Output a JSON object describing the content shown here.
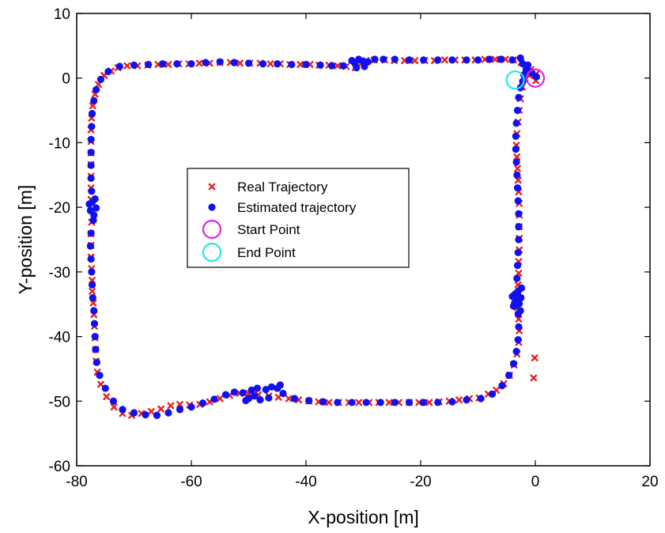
{
  "chart_data": {
    "type": "scatter",
    "xlabel": "X-position [m]",
    "ylabel": "Y-position [m]",
    "xlim": [
      -80,
      20
    ],
    "ylim": [
      -60,
      10
    ],
    "xticks": [
      -80,
      -60,
      -40,
      -20,
      0,
      20
    ],
    "yticks": [
      -60,
      -50,
      -40,
      -30,
      -20,
      -10,
      0,
      10
    ],
    "grid": false,
    "legend_position": "center-left",
    "colors": {
      "real": "#e8211e",
      "estimated": "#1010f0",
      "start": "#e020e0",
      "end": "#20e8e8"
    },
    "series": [
      {
        "name": "Real Trajectory",
        "marker": "x",
        "points": [
          [
            0.1,
            0.6
          ],
          [
            -0.8,
            1.3
          ],
          [
            -1.6,
            1.9
          ],
          [
            -2.5,
            2.4
          ],
          [
            -3.8,
            2.8
          ],
          [
            -5.2,
            2.9
          ],
          [
            -7.0,
            2.9
          ],
          [
            -8.8,
            2.9
          ],
          [
            -10.5,
            2.8
          ],
          [
            -12.3,
            2.8
          ],
          [
            -14.0,
            2.8
          ],
          [
            -15.8,
            2.8
          ],
          [
            -17.6,
            2.7
          ],
          [
            -19.3,
            2.7
          ],
          [
            -21.0,
            2.7
          ],
          [
            -22.8,
            2.7
          ],
          [
            -24.6,
            2.7
          ],
          [
            -26.3,
            2.8
          ],
          [
            -28.1,
            2.8
          ],
          [
            -29.5,
            2.7
          ],
          [
            -30.5,
            2.2
          ],
          [
            -31.4,
            1.6
          ],
          [
            -33.0,
            1.8
          ],
          [
            -34.5,
            1.9
          ],
          [
            -36.0,
            2.0
          ],
          [
            -37.7,
            2.0
          ],
          [
            -39.3,
            2.1
          ],
          [
            -41.0,
            2.1
          ],
          [
            -42.8,
            2.1
          ],
          [
            -44.5,
            2.2
          ],
          [
            -46.2,
            2.2
          ],
          [
            -48.0,
            2.3
          ],
          [
            -49.8,
            2.3
          ],
          [
            -51.5,
            2.3
          ],
          [
            -53.2,
            2.4
          ],
          [
            -55.0,
            2.4
          ],
          [
            -56.8,
            2.3
          ],
          [
            -58.6,
            2.3
          ],
          [
            -60.4,
            2.2
          ],
          [
            -62.2,
            2.2
          ],
          [
            -64.0,
            2.1
          ],
          [
            -65.8,
            2.1
          ],
          [
            -67.6,
            2.0
          ],
          [
            -69.4,
            1.9
          ],
          [
            -71.2,
            1.9
          ],
          [
            -72.8,
            1.6
          ],
          [
            -74.0,
            1.1
          ],
          [
            -75.2,
            0.4
          ],
          [
            -76.2,
            -1.0
          ],
          [
            -76.8,
            -2.5
          ],
          [
            -77.2,
            -4.3
          ],
          [
            -77.4,
            -6.2
          ],
          [
            -77.5,
            -8.0
          ],
          [
            -77.5,
            -9.8
          ],
          [
            -77.5,
            -11.6
          ],
          [
            -77.5,
            -13.4
          ],
          [
            -77.5,
            -15.2
          ],
          [
            -77.5,
            -17.0
          ],
          [
            -77.5,
            -18.8
          ],
          [
            -77.4,
            -20.5
          ],
          [
            -77.4,
            -22.3
          ],
          [
            -77.5,
            -24.1
          ],
          [
            -77.5,
            -25.9
          ],
          [
            -77.5,
            -27.7
          ],
          [
            -77.4,
            -29.5
          ],
          [
            -77.3,
            -31.3
          ],
          [
            -77.3,
            -33.0
          ],
          [
            -77.1,
            -34.8
          ],
          [
            -77.0,
            -36.6
          ],
          [
            -76.9,
            -38.4
          ],
          [
            -76.8,
            -40.2
          ],
          [
            -76.7,
            -42.0
          ],
          [
            -76.6,
            -43.8
          ],
          [
            -76.4,
            -45.5
          ],
          [
            -75.8,
            -47.4
          ],
          [
            -74.8,
            -49.3
          ],
          [
            -73.5,
            -50.9
          ],
          [
            -72.0,
            -51.9
          ],
          [
            -70.4,
            -52.2
          ],
          [
            -68.7,
            -51.9
          ],
          [
            -67.0,
            -51.6
          ],
          [
            -65.3,
            -51.2
          ],
          [
            -63.6,
            -50.7
          ],
          [
            -62.0,
            -50.5
          ],
          [
            -60.3,
            -50.6
          ],
          [
            -58.5,
            -50.5
          ],
          [
            -56.8,
            -50.1
          ],
          [
            -55.0,
            -49.6
          ],
          [
            -53.3,
            -49.1
          ],
          [
            -51.6,
            -48.8
          ],
          [
            -50.0,
            -48.8
          ],
          [
            -48.3,
            -49.0
          ],
          [
            -46.5,
            -49.2
          ],
          [
            -44.8,
            -49.4
          ],
          [
            -43.0,
            -49.6
          ],
          [
            -41.3,
            -49.8
          ],
          [
            -39.5,
            -50.0
          ],
          [
            -37.8,
            -50.1
          ],
          [
            -36.0,
            -50.2
          ],
          [
            -34.3,
            -50.2
          ],
          [
            -32.5,
            -50.2
          ],
          [
            -30.8,
            -50.2
          ],
          [
            -29.0,
            -50.2
          ],
          [
            -27.3,
            -50.2
          ],
          [
            -25.5,
            -50.2
          ],
          [
            -23.8,
            -50.2
          ],
          [
            -22.0,
            -50.2
          ],
          [
            -20.3,
            -50.2
          ],
          [
            -18.5,
            -50.2
          ],
          [
            -16.8,
            -50.1
          ],
          [
            -15.0,
            -50.0
          ],
          [
            -13.3,
            -49.8
          ],
          [
            -11.5,
            -49.6
          ],
          [
            -9.8,
            -49.5
          ],
          [
            -8.2,
            -48.9
          ],
          [
            -6.8,
            -48.3
          ],
          [
            -5.5,
            -47.3
          ],
          [
            -4.5,
            -46.0
          ],
          [
            -3.7,
            -44.4
          ],
          [
            -3.2,
            -42.7
          ],
          [
            -2.9,
            -40.9
          ],
          [
            -2.8,
            -39.1
          ],
          [
            -2.9,
            -37.3
          ],
          [
            -3.1,
            -35.5
          ],
          [
            -3.1,
            -33.8
          ],
          [
            -3.0,
            -32.0
          ],
          [
            -2.9,
            -30.2
          ],
          [
            -2.9,
            -28.4
          ],
          [
            -2.8,
            -26.6
          ],
          [
            -2.8,
            -24.8
          ],
          [
            -2.8,
            -23.0
          ],
          [
            -2.8,
            -21.2
          ],
          [
            -2.8,
            -19.4
          ],
          [
            -2.9,
            -17.6
          ],
          [
            -3.0,
            -15.8
          ],
          [
            -3.1,
            -14.0
          ],
          [
            -3.2,
            -12.2
          ],
          [
            -3.3,
            -10.4
          ],
          [
            -3.2,
            -8.6
          ],
          [
            -3.0,
            -6.8
          ],
          [
            -2.8,
            -5.0
          ],
          [
            -2.6,
            -3.2
          ],
          [
            -2.3,
            -1.4
          ],
          [
            -1.8,
            0.0
          ],
          [
            -1.0,
            0.4
          ],
          [
            0.1,
            -0.4
          ],
          [
            -0.1,
            -43.3
          ],
          [
            -0.3,
            -46.4
          ]
        ]
      },
      {
        "name": "Estimated trajectory",
        "marker": "filled-circle",
        "points": [
          [
            0.2,
            0.2
          ],
          [
            -0.6,
            0.8
          ],
          [
            -1.4,
            1.5
          ],
          [
            -2.2,
            2.2
          ],
          [
            -2.6,
            3.1
          ],
          [
            -4.0,
            2.8
          ],
          [
            -6.0,
            2.9
          ],
          [
            -8.0,
            2.9
          ],
          [
            -10.0,
            2.8
          ],
          [
            -12.0,
            2.8
          ],
          [
            -14.5,
            2.8
          ],
          [
            -17.0,
            2.8
          ],
          [
            -19.5,
            2.8
          ],
          [
            -22.0,
            2.8
          ],
          [
            -24.5,
            2.9
          ],
          [
            -26.5,
            2.9
          ],
          [
            -28.0,
            2.9
          ],
          [
            -29.2,
            2.5
          ],
          [
            -30.0,
            2.6
          ],
          [
            -30.8,
            2.9
          ],
          [
            -31.5,
            2.3
          ],
          [
            -31.2,
            1.6
          ],
          [
            -32.0,
            2.7
          ],
          [
            -29.8,
            1.8
          ],
          [
            -33.5,
            1.9
          ],
          [
            -35.5,
            1.9
          ],
          [
            -37.5,
            2.0
          ],
          [
            -40.0,
            2.1
          ],
          [
            -42.5,
            2.1
          ],
          [
            -45.0,
            2.2
          ],
          [
            -47.5,
            2.2
          ],
          [
            -50.0,
            2.3
          ],
          [
            -52.5,
            2.4
          ],
          [
            -55.0,
            2.5
          ],
          [
            -57.5,
            2.4
          ],
          [
            -60.0,
            2.2
          ],
          [
            -62.5,
            2.2
          ],
          [
            -65.0,
            2.2
          ],
          [
            -67.5,
            2.1
          ],
          [
            -70.0,
            2.0
          ],
          [
            -72.5,
            1.8
          ],
          [
            -74.5,
            1.0
          ],
          [
            -75.8,
            -0.2
          ],
          [
            -76.6,
            -1.8
          ],
          [
            -77.0,
            -3.5
          ],
          [
            -77.3,
            -5.5
          ],
          [
            -77.4,
            -7.5
          ],
          [
            -77.5,
            -9.5
          ],
          [
            -77.5,
            -11.5
          ],
          [
            -77.5,
            -13.5
          ],
          [
            -77.5,
            -15.5
          ],
          [
            -77.4,
            -17.5
          ],
          [
            -77.3,
            -19.2
          ],
          [
            -77.8,
            -19.5
          ],
          [
            -77.6,
            -20.5
          ],
          [
            -77.0,
            -21.2
          ],
          [
            -76.6,
            -20.1
          ],
          [
            -76.8,
            -18.7
          ],
          [
            -77.1,
            -22.0
          ],
          [
            -77.5,
            -24.0
          ],
          [
            -77.6,
            -26.0
          ],
          [
            -77.5,
            -28.0
          ],
          [
            -77.4,
            -30.0
          ],
          [
            -77.3,
            -32.0
          ],
          [
            -77.2,
            -34.0
          ],
          [
            -77.0,
            -36.0
          ],
          [
            -76.9,
            -38.0
          ],
          [
            -76.8,
            -40.0
          ],
          [
            -76.7,
            -42.0
          ],
          [
            -76.5,
            -44.0
          ],
          [
            -76.0,
            -46.0
          ],
          [
            -75.0,
            -48.0
          ],
          [
            -73.6,
            -50.0
          ],
          [
            -72.0,
            -51.3
          ],
          [
            -70.0,
            -51.8
          ],
          [
            -68.0,
            -52.1
          ],
          [
            -66.0,
            -52.2
          ],
          [
            -64.0,
            -51.8
          ],
          [
            -62.0,
            -51.3
          ],
          [
            -60.0,
            -50.9
          ],
          [
            -58.0,
            -50.3
          ],
          [
            -56.0,
            -49.7
          ],
          [
            -54.0,
            -49.0
          ],
          [
            -52.5,
            -48.6
          ],
          [
            -51.0,
            -48.7
          ],
          [
            -50.0,
            -49.6
          ],
          [
            -49.5,
            -48.3
          ],
          [
            -48.5,
            -48.0
          ],
          [
            -48.0,
            -49.8
          ],
          [
            -47.0,
            -48.2
          ],
          [
            -46.5,
            -49.5
          ],
          [
            -46.0,
            -47.8
          ],
          [
            -45.0,
            -48.0
          ],
          [
            -44.5,
            -47.5
          ],
          [
            -44.0,
            -48.8
          ],
          [
            -49.0,
            -49.2
          ],
          [
            -50.5,
            -49.9
          ],
          [
            -42.0,
            -49.6
          ],
          [
            -39.5,
            -49.9
          ],
          [
            -37.0,
            -50.1
          ],
          [
            -34.5,
            -50.2
          ],
          [
            -32.0,
            -50.2
          ],
          [
            -29.5,
            -50.2
          ],
          [
            -27.0,
            -50.2
          ],
          [
            -24.5,
            -50.2
          ],
          [
            -22.0,
            -50.2
          ],
          [
            -19.5,
            -50.2
          ],
          [
            -17.0,
            -50.2
          ],
          [
            -14.5,
            -50.1
          ],
          [
            -12.0,
            -49.8
          ],
          [
            -9.5,
            -49.6
          ],
          [
            -7.5,
            -48.9
          ],
          [
            -5.8,
            -47.6
          ],
          [
            -4.6,
            -46.0
          ],
          [
            -3.8,
            -44.2
          ],
          [
            -3.3,
            -42.3
          ],
          [
            -3.0,
            -40.5
          ],
          [
            -2.9,
            -38.5
          ],
          [
            -3.0,
            -36.5
          ],
          [
            -3.3,
            -34.5
          ],
          [
            -3.6,
            -34.8
          ],
          [
            -2.8,
            -34.9
          ],
          [
            -2.5,
            -34.0
          ],
          [
            -3.5,
            -33.4
          ],
          [
            -3.0,
            -33.0
          ],
          [
            -3.2,
            -31.0
          ],
          [
            -3.1,
            -29.0
          ],
          [
            -3.0,
            -27.0
          ],
          [
            -2.9,
            -25.0
          ],
          [
            -2.9,
            -23.0
          ],
          [
            -2.9,
            -21.0
          ],
          [
            -3.0,
            -19.0
          ],
          [
            -3.1,
            -17.0
          ],
          [
            -3.2,
            -15.0
          ],
          [
            -3.3,
            -13.0
          ],
          [
            -3.4,
            -11.0
          ],
          [
            -3.4,
            -9.0
          ],
          [
            -3.3,
            -7.0
          ],
          [
            -3.1,
            -5.0
          ],
          [
            -2.9,
            -3.0
          ],
          [
            -2.6,
            -1.5
          ],
          [
            -2.2,
            -0.5
          ],
          [
            -2.0,
            0.5
          ],
          [
            -1.6,
            1.2
          ],
          [
            -1.3,
            2.0
          ],
          [
            -3.2,
            -35.0
          ],
          [
            -3.8,
            -35.3
          ],
          [
            -2.6,
            -36.0
          ],
          [
            -4.0,
            -33.8
          ],
          [
            -2.4,
            -32.5
          ]
        ]
      },
      {
        "name": "Start Point",
        "marker": "open-circle",
        "points": [
          [
            0.0,
            0.0
          ]
        ]
      },
      {
        "name": "End Point",
        "marker": "open-circle",
        "points": [
          [
            -3.5,
            -0.3
          ]
        ]
      }
    ]
  }
}
